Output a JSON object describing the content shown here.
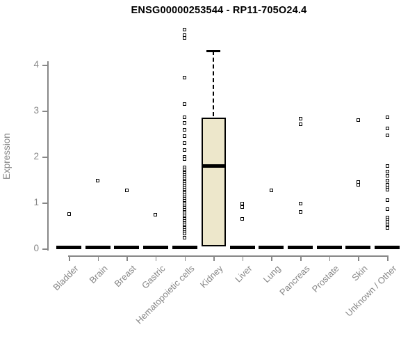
{
  "chart_data": {
    "type": "box",
    "title": "ENSG00000253544 - RP11-705O24.4",
    "ylabel": "Expression",
    "xlabel": "",
    "ylim": [
      0,
      4.9
    ],
    "yticks": [
      0,
      1,
      2,
      3,
      4
    ],
    "grid": false,
    "legend": "none",
    "axis_color": "#878787",
    "box_fill_color": "#EDE7CB",
    "point_color": "#000000",
    "categories": [
      "Bladder",
      "Brain",
      "Breast",
      "Gastric",
      "Hematopoietic cells",
      "Kidney",
      "Liver",
      "Lung",
      "Pancreas",
      "Prostate",
      "Skin",
      "Unknown / Other"
    ],
    "series": [
      {
        "category": "Bladder",
        "box": {
          "low": 0,
          "q1": 0,
          "median": 0,
          "q3": 0,
          "high": 0
        },
        "outliers": [
          0.75
        ]
      },
      {
        "category": "Brain",
        "box": {
          "low": 0,
          "q1": 0,
          "median": 0,
          "q3": 0,
          "high": 0
        },
        "outliers": [
          1.48
        ]
      },
      {
        "category": "Breast",
        "box": {
          "low": 0,
          "q1": 0,
          "median": 0,
          "q3": 0,
          "high": 0
        },
        "outliers": [
          1.27
        ]
      },
      {
        "category": "Gastric",
        "box": {
          "low": 0,
          "q1": 0,
          "median": 0,
          "q3": 0,
          "high": 0
        },
        "outliers": [
          0.74
        ]
      },
      {
        "category": "Hematopoietic cells",
        "box": {
          "low": 0,
          "q1": 0,
          "median": 0,
          "q3": 0,
          "high": 0
        },
        "outliers": [
          4.77,
          4.65,
          4.58,
          3.72,
          3.15,
          2.86,
          2.73,
          2.59,
          2.44,
          2.3,
          2.15,
          2.0,
          1.95,
          1.77,
          1.72,
          1.68,
          1.64,
          1.6,
          1.56,
          1.52,
          1.48,
          1.44,
          1.4,
          1.36,
          1.32,
          1.28,
          1.24,
          1.2,
          1.16,
          1.12,
          1.08,
          1.04,
          1.0,
          0.96,
          0.92,
          0.88,
          0.84,
          0.8,
          0.76,
          0.72,
          0.68,
          0.64,
          0.6,
          0.56,
          0.52,
          0.48,
          0.44,
          0.4,
          0.36,
          0.32,
          0.23
        ]
      },
      {
        "category": "Kidney",
        "box": {
          "low": 0.05,
          "q1": 0.05,
          "median": 1.8,
          "q3": 2.85,
          "high": 4.3
        },
        "outliers": []
      },
      {
        "category": "Liver",
        "box": {
          "low": 0,
          "q1": 0,
          "median": 0,
          "q3": 0,
          "high": 0
        },
        "outliers": [
          0.97,
          0.9,
          0.64
        ]
      },
      {
        "category": "Lung",
        "box": {
          "low": 0,
          "q1": 0,
          "median": 0,
          "q3": 0,
          "high": 0
        },
        "outliers": [
          1.27
        ]
      },
      {
        "category": "Pancreas",
        "box": {
          "low": 0,
          "q1": 0,
          "median": 0,
          "q3": 0,
          "high": 0
        },
        "outliers": [
          2.83,
          2.7,
          0.97,
          0.8
        ]
      },
      {
        "category": "Prostate",
        "box": {
          "low": 0,
          "q1": 0,
          "median": 0,
          "q3": 0,
          "high": 0
        },
        "outliers": []
      },
      {
        "category": "Skin",
        "box": {
          "low": 0,
          "q1": 0,
          "median": 0,
          "q3": 0,
          "high": 0
        },
        "outliers": [
          2.8,
          1.44,
          1.38
        ]
      },
      {
        "category": "Unknown / Other",
        "box": {
          "low": 0,
          "q1": 0,
          "median": 0,
          "q3": 0,
          "high": 0
        },
        "outliers": [
          2.85,
          2.62,
          2.46,
          1.79,
          1.67,
          1.59,
          1.48,
          1.38,
          1.33,
          1.28,
          1.06,
          0.85,
          0.68,
          0.63,
          0.58,
          0.53,
          0.48,
          0.44
        ]
      }
    ]
  }
}
